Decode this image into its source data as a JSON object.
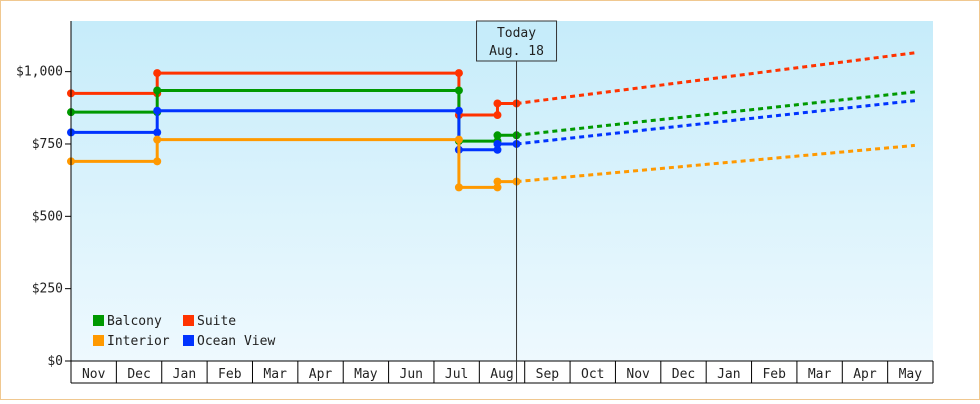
{
  "chart_data": {
    "type": "line",
    "categories": [
      "Nov",
      "Dec",
      "Jan",
      "Feb",
      "Mar",
      "Apr",
      "May",
      "Jun",
      "Jul",
      "Aug",
      "Sep",
      "Oct",
      "Nov",
      "Dec",
      "Jan",
      "Feb",
      "Mar",
      "Apr",
      "May"
    ],
    "y_ticks": [
      "$0",
      "$250",
      "$500",
      "$750",
      "$1,000"
    ],
    "y_tick_values": [
      0,
      250,
      500,
      750,
      1000
    ],
    "ylim": [
      0,
      1175
    ],
    "grid": false,
    "legend": {
      "placement": "bottom-left",
      "entries": [
        "Balcony",
        "Suite",
        "Interior",
        "Ocean View"
      ]
    },
    "today": {
      "line1": "Today",
      "line2": "Aug. 18",
      "x": 9.82
    },
    "series": [
      {
        "name": "Suite",
        "color": "#ff3300",
        "historical": [
          [
            0,
            925
          ],
          [
            1.9,
            925
          ],
          [
            1.9,
            995
          ],
          [
            8.55,
            995
          ],
          [
            8.55,
            850
          ],
          [
            9.4,
            850
          ],
          [
            9.4,
            890
          ],
          [
            9.82,
            890
          ]
        ],
        "forecast": [
          [
            9.82,
            890
          ],
          [
            18.6,
            1065
          ]
        ]
      },
      {
        "name": "Balcony",
        "color": "#009900",
        "historical": [
          [
            0,
            860
          ],
          [
            1.9,
            860
          ],
          [
            1.9,
            935
          ],
          [
            8.55,
            935
          ],
          [
            8.55,
            760
          ],
          [
            9.4,
            760
          ],
          [
            9.4,
            780
          ],
          [
            9.82,
            780
          ]
        ],
        "forecast": [
          [
            9.82,
            780
          ],
          [
            18.6,
            930
          ]
        ]
      },
      {
        "name": "Ocean View",
        "color": "#0033ff",
        "historical": [
          [
            0,
            790
          ],
          [
            1.9,
            790
          ],
          [
            1.9,
            865
          ],
          [
            8.55,
            865
          ],
          [
            8.55,
            730
          ],
          [
            9.4,
            730
          ],
          [
            9.4,
            750
          ],
          [
            9.82,
            750
          ]
        ],
        "forecast": [
          [
            9.82,
            750
          ],
          [
            18.6,
            900
          ]
        ]
      },
      {
        "name": "Interior",
        "color": "#ff9900",
        "historical": [
          [
            0,
            690
          ],
          [
            1.9,
            690
          ],
          [
            1.9,
            765
          ],
          [
            8.55,
            765
          ],
          [
            8.55,
            600
          ],
          [
            9.4,
            600
          ],
          [
            9.4,
            620
          ],
          [
            9.82,
            620
          ]
        ],
        "forecast": [
          [
            9.82,
            620
          ],
          [
            18.6,
            745
          ]
        ]
      }
    ]
  },
  "colors": {
    "bg_top": "#c6ecfa",
    "bg_bottom": "#eef9fe"
  }
}
